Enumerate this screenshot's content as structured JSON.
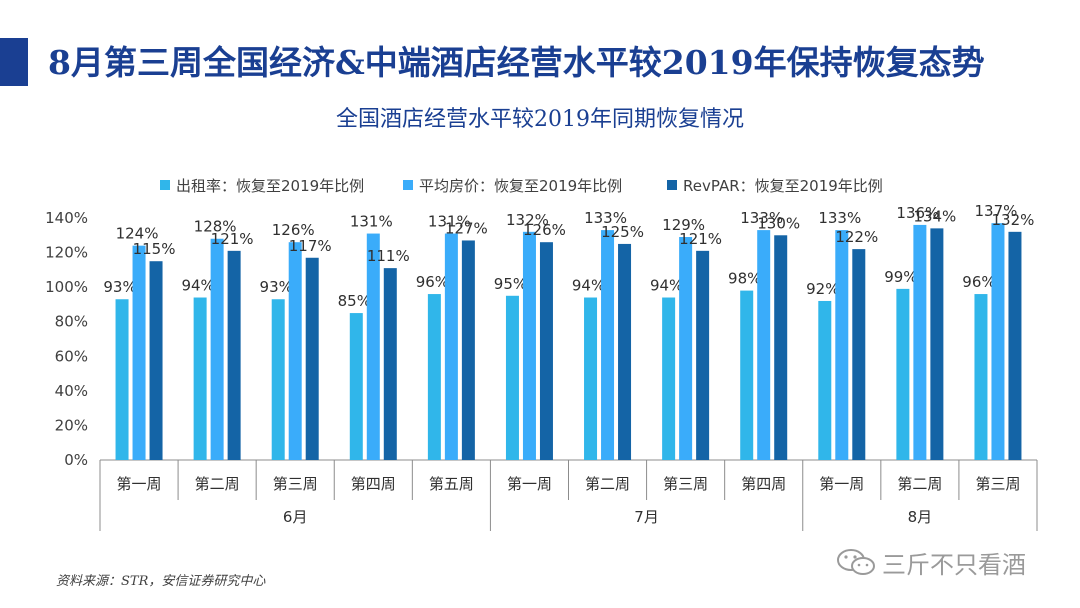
{
  "header": {
    "title": "8月第三周全国经济&中端酒店经营水平较2019年保持恢复态势",
    "subtitle": "全国酒店经营水平较2019年同期恢复情况"
  },
  "colors": {
    "accent": "#1a3f92",
    "occupancy": "#30b6ea",
    "adr": "#3aacfa",
    "revpar": "#1464a6"
  },
  "footer": {
    "source": "资料来源：STR，安信证券研究中心",
    "watermark": "三斤不只看酒",
    "watermark_icon": "wechat-icon"
  },
  "chart_data": {
    "type": "bar",
    "y_unit": "%",
    "ylim": [
      0,
      140
    ],
    "y_ticks": [
      "0%",
      "20%",
      "40%",
      "60%",
      "80%",
      "100%",
      "120%",
      "140%"
    ],
    "grid": false,
    "legend_position": "top",
    "categories": [
      "第一周",
      "第二周",
      "第三周",
      "第四周",
      "第五周",
      "第一周",
      "第二周",
      "第三周",
      "第四周",
      "第一周",
      "第二周",
      "第三周"
    ],
    "groups": [
      {
        "label": "6月",
        "span": 5
      },
      {
        "label": "7月",
        "span": 4
      },
      {
        "label": "8月",
        "span": 3
      }
    ],
    "series": [
      {
        "name": "出租率：恢复至2019年比例",
        "color": "#30b6ea",
        "values": [
          93,
          94,
          93,
          85,
          96,
          95,
          94,
          94,
          98,
          92,
          99,
          96
        ]
      },
      {
        "name": "平均房价：恢复至2019年比例",
        "color": "#3aacfa",
        "values": [
          124,
          128,
          126,
          131,
          131,
          132,
          133,
          129,
          133,
          133,
          136,
          137
        ]
      },
      {
        "name": "RevPAR：恢复至2019年比例",
        "color": "#1464a6",
        "values": [
          115,
          121,
          117,
          111,
          127,
          126,
          125,
          121,
          130,
          122,
          134,
          132
        ]
      }
    ]
  }
}
